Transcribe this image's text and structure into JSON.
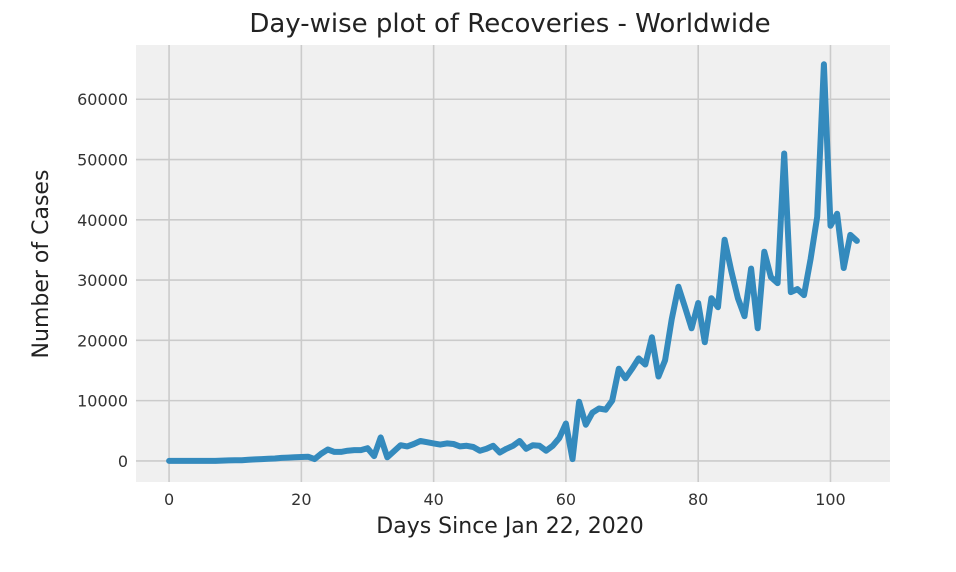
{
  "chart_data": {
    "type": "line",
    "title": "Day-wise plot of Recoveries - Worldwide",
    "xlabel": "Days Since Jan 22, 2020",
    "ylabel": "Number of Cases",
    "xlim": [
      -5,
      109
    ],
    "ylim": [
      -3500,
      69000
    ],
    "xticks": [
      0,
      20,
      40,
      60,
      80,
      100
    ],
    "yticks": [
      0,
      10000,
      20000,
      30000,
      40000,
      50000,
      60000
    ],
    "grid": true,
    "legend": "none",
    "colors": {
      "line": "#348ABD",
      "plot_bg": "#F0F0F0",
      "grid": "#CBCBCB"
    },
    "series": [
      {
        "x": [
          0,
          1,
          2,
          3,
          4,
          5,
          6,
          7,
          8,
          9,
          10,
          11,
          12,
          13,
          14,
          15,
          16,
          17,
          18,
          19,
          20,
          21,
          22,
          23,
          24,
          25,
          26,
          27,
          28,
          29,
          30,
          31,
          32,
          33,
          34,
          35,
          36,
          37,
          38,
          39,
          40,
          41,
          42,
          43,
          44,
          45,
          46,
          47,
          48,
          49,
          50,
          51,
          52,
          53,
          54,
          55,
          56,
          57,
          58,
          59,
          60,
          61,
          62,
          63,
          64,
          65,
          66,
          67,
          68,
          69,
          70,
          71,
          72,
          73,
          74,
          75,
          76,
          77,
          78,
          79,
          80,
          81,
          82,
          83,
          84,
          85,
          86,
          87,
          88,
          89,
          90,
          91,
          92,
          93,
          94,
          95,
          96,
          97,
          98,
          99,
          100,
          101,
          102,
          103,
          104
        ],
        "values": [
          0,
          0,
          0,
          0,
          0,
          0,
          0,
          0,
          50,
          80,
          100,
          120,
          180,
          250,
          300,
          350,
          400,
          500,
          550,
          600,
          650,
          700,
          300,
          1200,
          1900,
          1500,
          1500,
          1700,
          1800,
          1800,
          2100,
          800,
          3900,
          600,
          1600,
          2600,
          2400,
          2800,
          3300,
          3100,
          2900,
          2700,
          2900,
          2800,
          2400,
          2500,
          2300,
          1700,
          2000,
          2500,
          1400,
          2000,
          2500,
          3300,
          2000,
          2600,
          2500,
          1700,
          2500,
          3800,
          6200,
          300,
          9800,
          6000,
          8000,
          8700,
          8500,
          10000,
          15300,
          13700,
          15300,
          17000,
          16000,
          20500,
          14000,
          16700,
          23500,
          28900,
          25500,
          22000,
          26200,
          19700,
          27000,
          25500,
          36700,
          31500,
          27000,
          24000,
          31900,
          22000,
          34700,
          30500,
          29500,
          51000,
          28000,
          28500,
          27500,
          33500,
          40500,
          65800,
          39000,
          41000,
          32000,
          37500,
          36500
        ]
      }
    ]
  }
}
